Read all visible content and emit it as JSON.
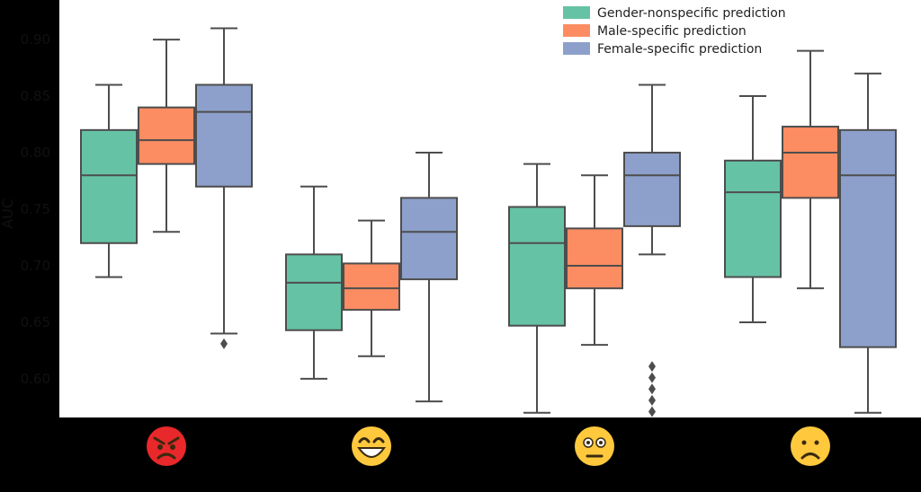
{
  "colors": {
    "background": "#000000",
    "plot_background": "#ffffff",
    "box_edge": "#4d4d4d",
    "tick_label": "#111111"
  },
  "chart_data": {
    "type": "box",
    "ylabel": "AUC",
    "xlabel": "",
    "ylim": [
      0.565,
      0.935
    ],
    "yticks": [
      0.6,
      0.65,
      0.7,
      0.75,
      0.8,
      0.85,
      0.9
    ],
    "ytick_labels": [
      "0.60",
      "0.65",
      "0.70",
      "0.75",
      "0.80",
      "0.85",
      "0.90"
    ],
    "grid": false,
    "legend_position": "top-right",
    "categories": [
      "angry-face-icon",
      "grinning-face-icon",
      "neutral-face-icon",
      "frowning-face-icon"
    ],
    "series": [
      {
        "name": "Gender-nonspecific prediction",
        "color": "#66c2a5",
        "boxes": [
          {
            "whislo": 0.69,
            "q1": 0.72,
            "med": 0.78,
            "q3": 0.82,
            "whishi": 0.86,
            "fliers": []
          },
          {
            "whislo": 0.6,
            "q1": 0.643,
            "med": 0.685,
            "q3": 0.71,
            "whishi": 0.77,
            "fliers": []
          },
          {
            "whislo": 0.57,
            "q1": 0.647,
            "med": 0.72,
            "q3": 0.752,
            "whishi": 0.79,
            "fliers": []
          },
          {
            "whislo": 0.65,
            "q1": 0.69,
            "med": 0.765,
            "q3": 0.793,
            "whishi": 0.85,
            "fliers": []
          }
        ]
      },
      {
        "name": "Male-specific prediction",
        "color": "#fc8d62",
        "boxes": [
          {
            "whislo": 0.73,
            "q1": 0.79,
            "med": 0.811,
            "q3": 0.84,
            "whishi": 0.9,
            "fliers": []
          },
          {
            "whislo": 0.62,
            "q1": 0.661,
            "med": 0.68,
            "q3": 0.702,
            "whishi": 0.74,
            "fliers": []
          },
          {
            "whislo": 0.63,
            "q1": 0.68,
            "med": 0.7,
            "q3": 0.733,
            "whishi": 0.78,
            "fliers": []
          },
          {
            "whislo": 0.68,
            "q1": 0.76,
            "med": 0.8,
            "q3": 0.823,
            "whishi": 0.89,
            "fliers": []
          }
        ]
      },
      {
        "name": "Female-specific prediction",
        "color": "#8da0cb",
        "boxes": [
          {
            "whislo": 0.64,
            "q1": 0.77,
            "med": 0.836,
            "q3": 0.86,
            "whishi": 0.91,
            "fliers": [
              0.631
            ]
          },
          {
            "whislo": 0.58,
            "q1": 0.688,
            "med": 0.73,
            "q3": 0.76,
            "whishi": 0.8,
            "fliers": []
          },
          {
            "whislo": 0.71,
            "q1": 0.735,
            "med": 0.78,
            "q3": 0.8,
            "whishi": 0.86,
            "fliers": [
              0.571,
              0.581,
              0.591,
              0.601,
              0.611
            ]
          },
          {
            "whislo": 0.57,
            "q1": 0.628,
            "med": 0.78,
            "q3": 0.82,
            "whishi": 0.87,
            "fliers": []
          }
        ]
      }
    ]
  }
}
